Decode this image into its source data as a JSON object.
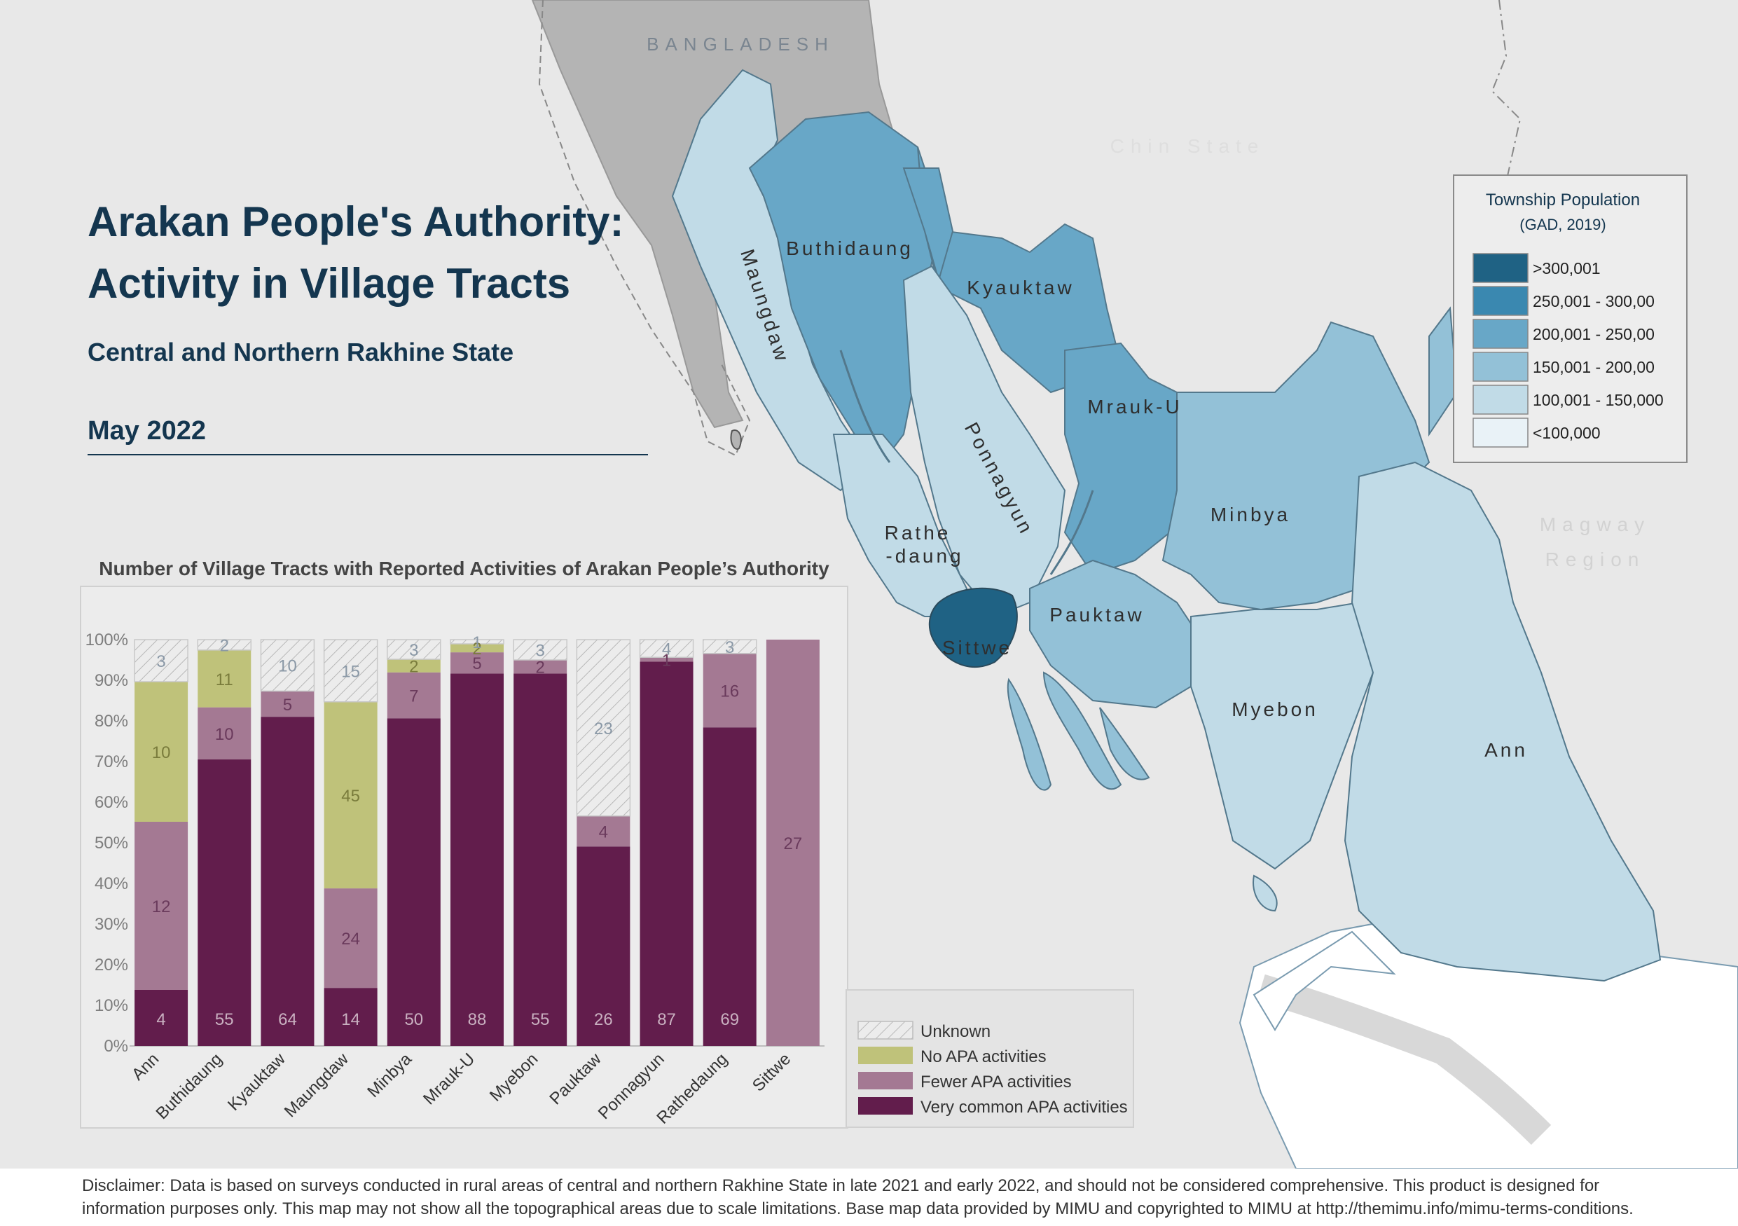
{
  "header": {
    "title_line1": "Arakan People's Authority:",
    "title_line2": "Activity in Village Tracts",
    "subtitle": "Central and Northern Rakhine State",
    "date": "May 2022"
  },
  "map": {
    "place_labels": {
      "bangladesh": "BANGLADESH",
      "chin_state": "Chin State",
      "magway": "Magway",
      "region": "Region",
      "maungdaw": "Maungdaw",
      "buthidaung": "Buthidaung",
      "kyauktaw": "Kyauktaw",
      "mrauk_u": "Mrauk-U",
      "ponnagyun": "Ponnagyun",
      "rathedaung_1": "Rathe",
      "rathedaung_2": "-daung",
      "minbya": "Minbya",
      "sittwe": "Sittwe",
      "pauktaw": "Pauktaw",
      "myebon": "Myebon",
      "ann": "Ann"
    },
    "legend": {
      "title_line1": "Township Population",
      "title_line2": "(GAD, 2019)",
      "classes": [
        {
          "label": ">300,001",
          "color": "#1f6284"
        },
        {
          "label": "250,001 - 300,00",
          "color": "#3a88b0"
        },
        {
          "label": "200,001 - 250,00",
          "color": "#68a7c7"
        },
        {
          "label": "150,001 - 200,00",
          "color": "#93c1d7"
        },
        {
          "label": "100,001 - 150,000",
          "color": "#c1dbe7"
        },
        {
          "label": "<100,000",
          "color": "#e9f2f7"
        }
      ]
    },
    "township_classes": {
      "Maungdaw": "100,001 - 150,000",
      "Buthidaung": "200,001 - 250,00",
      "Kyauktaw": "200,001 - 250,00",
      "Mrauk-U": "200,001 - 250,00",
      "Ponnagyun": "100,001 - 150,000",
      "Rathedaung": "100,001 - 150,000",
      "Minbya": "150,001 - 200,00",
      "Sittwe": ">300,001",
      "Pauktaw": "150,001 - 200,00",
      "Myebon": "100,001 - 150,000",
      "Ann": "100,001 - 150,000"
    }
  },
  "chart_data": {
    "type": "bar",
    "stacked": true,
    "percent": true,
    "title": "Number of Village Tracts with Reported Activities of Arakan People’s Authority",
    "categories": [
      "Ann",
      "Buthidaung",
      "Kyauktaw",
      "Maungdaw",
      "Minbya",
      "Mrauk-U",
      "Myebon",
      "Pauktaw",
      "Ponnagyun",
      "Rathedaung",
      "Sittwe"
    ],
    "series": [
      {
        "name": "Very common APA activities",
        "color": "#621d4c",
        "values": [
          4,
          55,
          64,
          14,
          50,
          88,
          55,
          26,
          87,
          69,
          0
        ]
      },
      {
        "name": "Fewer APA activities",
        "color": "#a47993",
        "values": [
          12,
          10,
          5,
          24,
          7,
          5,
          2,
          4,
          1,
          16,
          27
        ]
      },
      {
        "name": "No APA activities",
        "color": "#bfc27a",
        "values": [
          10,
          11,
          0,
          45,
          2,
          2,
          0,
          0,
          0,
          0,
          0
        ]
      },
      {
        "name": "Unknown",
        "color": "hatched",
        "values": [
          3,
          2,
          10,
          15,
          3,
          1,
          3,
          23,
          4,
          3,
          0
        ]
      }
    ],
    "y_ticks": [
      "0%",
      "10%",
      "20%",
      "30%",
      "40%",
      "50%",
      "60%",
      "70%",
      "80%",
      "90%",
      "100%"
    ],
    "ylim": [
      0,
      100
    ],
    "legend_order": [
      "Unknown",
      "No APA activities",
      "Fewer APA activities",
      "Very common APA activities"
    ],
    "legend_position": "bottom-right"
  },
  "disclaimer": {
    "text": "Disclaimer: Data is based on surveys conducted in rural areas of central and northern Rakhine State in late 2021 and early 2022, and should not be considered comprehensive. This product is designed for information purposes only. This map may not show all the topographical areas due to scale limitations. Base map data provided by MIMU and copyrighted to MIMU at http://themimu.info/mimu-terms-conditions."
  }
}
